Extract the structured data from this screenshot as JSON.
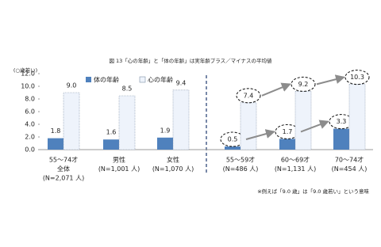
{
  "chart_data": {
    "type": "bar",
    "title": "図 13「心の年齢」と「体の年齢」は実年齢プラス／マイナスの平均値",
    "y_label": "(○歳若い)",
    "categories": [
      [
        "55～74才",
        "全体",
        "(N=2,071 人)"
      ],
      [
        "男性",
        "(N=1,001 人)"
      ],
      [
        "女性",
        "(N=1,070 人)"
      ],
      [
        "55～59才",
        "(N=486 人)"
      ],
      [
        "60～69才",
        "(N=1,131 人)"
      ],
      [
        "70～74才",
        "(N=454 人)"
      ]
    ],
    "series": [
      {
        "name": "体の年齢",
        "color": "#4f81bd",
        "values": [
          1.8,
          1.6,
          1.9,
          0.5,
          1.7,
          3.3
        ],
        "value_labels": [
          "1.8",
          "1.6",
          "1.9",
          "0.5",
          "1.7",
          "3.3"
        ]
      },
      {
        "name": "心の年齢",
        "color": "#eef3fb",
        "values": [
          9.0,
          8.5,
          9.4,
          7.4,
          9.2,
          10.3
        ],
        "value_labels": [
          "9.0",
          "8.5",
          "9.4",
          "7.4",
          "9.2",
          "10.3"
        ]
      }
    ],
    "ylim": [
      0,
      12
    ],
    "yticks": [
      {
        "value": 0,
        "label": "0.0"
      },
      {
        "value": 2,
        "label": "2.0"
      },
      {
        "value": 4,
        "label": "4.0"
      },
      {
        "value": 6,
        "label": "6.0"
      },
      {
        "value": 8,
        "label": "8.0"
      },
      {
        "value": 10,
        "label": "10.0"
      },
      {
        "value": 12,
        "label": "12.0"
      }
    ],
    "grid": false,
    "note": "※例えば「9.0 歳」は「9.0 歳若い」という意味"
  }
}
